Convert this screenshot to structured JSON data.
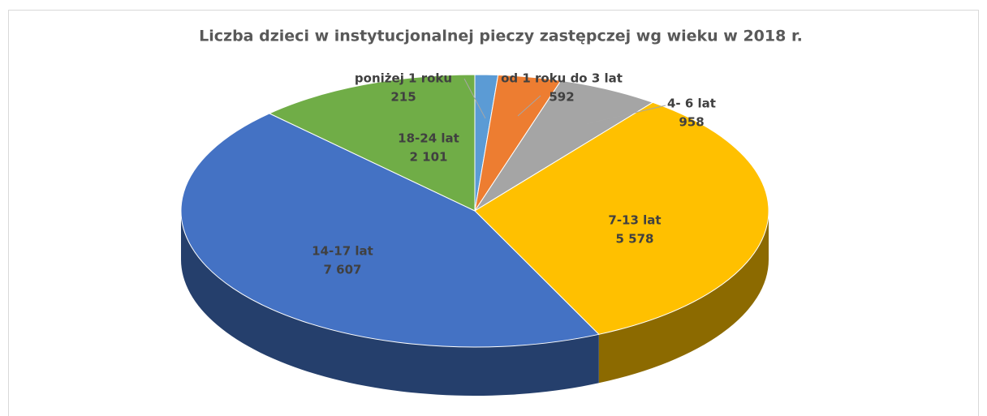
{
  "chart_data": {
    "type": "pie3d",
    "title": "Liczba dzieci w instytucjonalnej pieczy zastępczej wg wieku w 2018 r.",
    "categories": [
      "poniżej 1 roku",
      "od 1 roku do 3 lat",
      "4- 6 lat",
      "7-13 lat",
      "14-17 lat",
      "18-24 lat"
    ],
    "values": [
      215,
      592,
      958,
      5578,
      7607,
      2101
    ],
    "value_labels": [
      "215",
      "592",
      "958",
      "5 578",
      "7 607",
      "2 101"
    ],
    "colors": [
      "#5b9bd5",
      "#ed7d31",
      "#a5a5a5",
      "#ffc000",
      "#4472c4",
      "#70ad47"
    ]
  }
}
